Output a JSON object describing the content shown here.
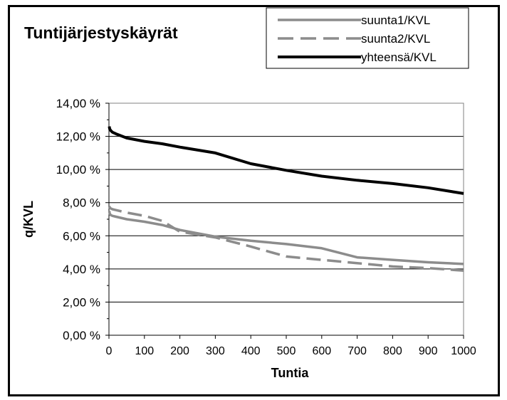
{
  "chart_data": {
    "type": "line",
    "title": "Tuntijärjestyskäyrät",
    "xlabel": "Tuntia",
    "ylabel": "q/KVL",
    "xlim": [
      0,
      1000
    ],
    "ylim": [
      0,
      14
    ],
    "x_ticks": [
      0,
      100,
      200,
      300,
      400,
      500,
      600,
      700,
      800,
      900,
      1000
    ],
    "x_tick_labels": [
      "0",
      "100",
      "200",
      "300",
      "400",
      "500",
      "600",
      "700",
      "800",
      "900",
      "1000"
    ],
    "y_ticks": [
      0,
      2,
      4,
      6,
      8,
      10,
      12,
      14
    ],
    "y_tick_labels": [
      "0,00 %",
      "2,00 %",
      "4,00 %",
      "6,00 %",
      "8,00 %",
      "10,00 %",
      "12,00 %",
      "14,00 %"
    ],
    "grid": "horizontal",
    "legend_position": "top-right",
    "series": [
      {
        "name": "suunta1/KVL",
        "color": "#8c8c8c",
        "style": "solid",
        "x": [
          1,
          2,
          5,
          10,
          20,
          50,
          100,
          150,
          200,
          300,
          400,
          500,
          600,
          700,
          800,
          900,
          1000
        ],
        "y": [
          7.5,
          7.35,
          7.25,
          7.2,
          7.15,
          7.0,
          6.85,
          6.65,
          6.35,
          5.95,
          5.7,
          5.5,
          5.25,
          4.7,
          4.55,
          4.4,
          4.3
        ]
      },
      {
        "name": "suunta2/KVL",
        "color": "#8c8c8c",
        "style": "dashed",
        "x": [
          1,
          2,
          5,
          10,
          20,
          50,
          100,
          150,
          200,
          300,
          400,
          500,
          600,
          700,
          800,
          900,
          1000
        ],
        "y": [
          7.8,
          7.7,
          7.65,
          7.6,
          7.55,
          7.4,
          7.2,
          6.9,
          6.25,
          5.9,
          5.35,
          4.75,
          4.55,
          4.35,
          4.15,
          4.05,
          3.9
        ]
      },
      {
        "name": "yhteensä/KVL",
        "color": "#000000",
        "style": "solid",
        "x": [
          1,
          2,
          5,
          10,
          20,
          50,
          100,
          150,
          200,
          300,
          400,
          500,
          600,
          700,
          800,
          900,
          1000
        ],
        "y": [
          12.6,
          12.45,
          12.35,
          12.25,
          12.15,
          11.9,
          11.7,
          11.55,
          11.35,
          11.0,
          10.35,
          9.95,
          9.6,
          9.35,
          9.15,
          8.9,
          8.55
        ]
      }
    ]
  }
}
